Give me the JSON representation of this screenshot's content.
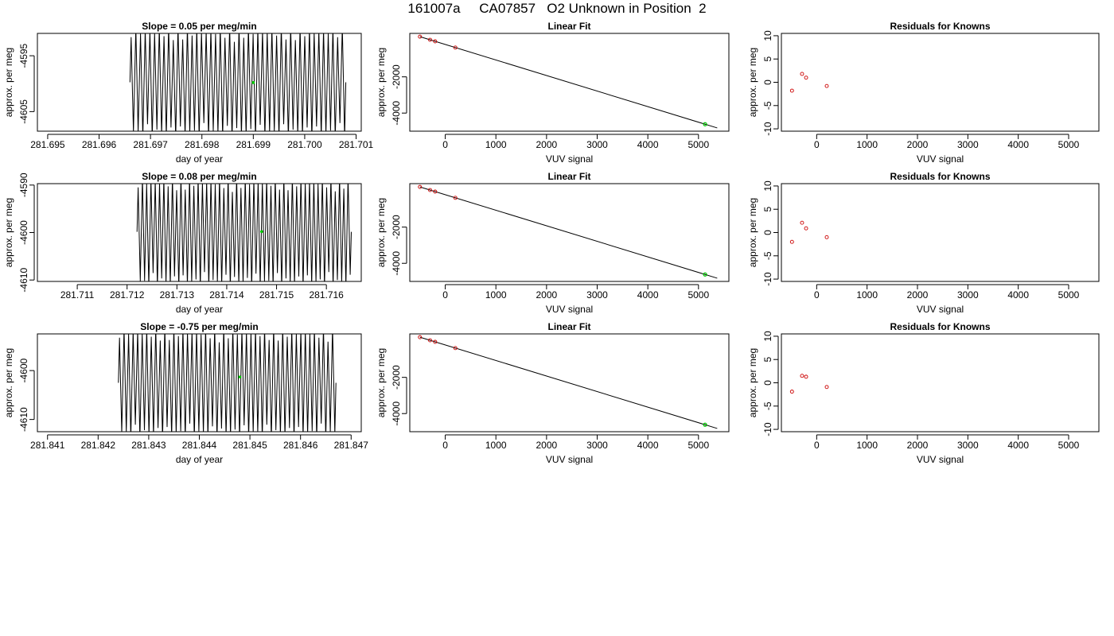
{
  "figure_title": "161007a     CA07857   O2 Unknown in Position  2",
  "chart_data": [
    {
      "type": "line",
      "title": "Slope =  0.05  per meg/min",
      "xlabel": "day of year",
      "ylabel": "approx. per meg",
      "xlim": [
        281.6948,
        281.7011
      ],
      "ylim": [
        -4608.5,
        -4591
      ],
      "xticks": [
        281.695,
        281.696,
        281.697,
        281.698,
        281.699,
        281.7,
        281.701
      ],
      "xtick_labels": [
        "281.695",
        "281.696",
        "281.697",
        "281.698",
        "281.699",
        "281.700",
        "281.701"
      ],
      "yticks": [
        -4595,
        -4605
      ],
      "ytick_labels": [
        "-4595",
        "-4605"
      ],
      "series": [
        {
          "style": "oscillating trace",
          "x_start": 281.6966,
          "x_end": 281.7008,
          "y_high": -4591,
          "y_low": -4608.5,
          "cycles": 46,
          "color": "#000000"
        }
      ],
      "highlight_point": {
        "x": 281.699,
        "y": -4599.8,
        "color": "#00cc00"
      }
    },
    {
      "type": "scatter",
      "title": "Linear Fit",
      "xlabel": "VUV signal",
      "ylabel": "approx. per meg",
      "xlim": [
        -700,
        5600
      ],
      "ylim": [
        -5000,
        400
      ],
      "xticks": [
        0,
        1000,
        2000,
        3000,
        4000,
        5000
      ],
      "xtick_labels": [
        "0",
        "1000",
        "2000",
        "3000",
        "4000",
        "5000"
      ],
      "yticks": [
        -2000,
        -4000
      ],
      "ytick_labels": [
        "-2000",
        "-4000"
      ],
      "fit_line": {
        "x": [
          -500,
          5370
        ],
        "y": [
          219,
          -4821
        ]
      },
      "known_points": {
        "x": [
          -500,
          -300,
          -200,
          200
        ],
        "y": [
          219,
          47,
          -39,
          -383
        ],
        "color": "#cc0000"
      },
      "unknown_point": {
        "x": 5130,
        "y": -4615,
        "color": "#00cc00"
      }
    },
    {
      "type": "scatter",
      "title": "Residuals for Knowns",
      "xlabel": "VUV signal",
      "ylabel": "approx. per meg",
      "xlim": [
        -700,
        5600
      ],
      "ylim": [
        -10.5,
        10.5
      ],
      "xticks": [
        0,
        1000,
        2000,
        3000,
        4000,
        5000
      ],
      "xtick_labels": [
        "0",
        "1000",
        "2000",
        "3000",
        "4000",
        "5000"
      ],
      "yticks": [
        -10,
        -5,
        0,
        5,
        10
      ],
      "ytick_labels": [
        "-10",
        "-5",
        "0",
        "5",
        "10"
      ],
      "points": {
        "x": [
          -490,
          -290,
          -210,
          200
        ],
        "y": [
          -1.8,
          1.8,
          1.0,
          -0.8
        ],
        "color": "#cc0000"
      }
    },
    {
      "type": "line",
      "title": "Slope =  0.08  per meg/min",
      "xlabel": "day of year",
      "ylabel": "approx. per meg",
      "xlim": [
        281.7102,
        281.7167
      ],
      "ylim": [
        -4610.3,
        -4589.7
      ],
      "xticks": [
        281.711,
        281.712,
        281.713,
        281.714,
        281.715,
        281.716
      ],
      "xtick_labels": [
        "281.711",
        "281.712",
        "281.713",
        "281.714",
        "281.715",
        "281.716"
      ],
      "yticks": [
        -4590,
        -4600,
        -4610
      ],
      "ytick_labels": [
        "-4590",
        "-4600",
        "-4610"
      ],
      "series": [
        {
          "style": "oscillating trace",
          "x_start": 281.7122,
          "x_end": 281.7165,
          "y_high": -4589.7,
          "y_low": -4610,
          "cycles": 50,
          "color": "#000000"
        }
      ],
      "highlight_point": {
        "x": 281.7147,
        "y": -4599.8,
        "color": "#00cc00"
      }
    },
    {
      "type": "scatter",
      "title": "Linear Fit",
      "xlabel": "VUV signal",
      "ylabel": "approx. per meg",
      "xlim": [
        -700,
        5600
      ],
      "ylim": [
        -5000,
        400
      ],
      "xticks": [
        0,
        1000,
        2000,
        3000,
        4000,
        5000
      ],
      "xtick_labels": [
        "0",
        "1000",
        "2000",
        "3000",
        "4000",
        "5000"
      ],
      "yticks": [
        -2000,
        -4000
      ],
      "ytick_labels": [
        "-2000",
        "-4000"
      ],
      "fit_line": {
        "x": [
          -500,
          5370
        ],
        "y": [
          219,
          -4821
        ]
      },
      "known_points": {
        "x": [
          -500,
          -300,
          -200,
          200
        ],
        "y": [
          219,
          47,
          -39,
          -383
        ],
        "color": "#cc0000"
      },
      "unknown_point": {
        "x": 5130,
        "y": -4615,
        "color": "#00cc00"
      }
    },
    {
      "type": "scatter",
      "title": "Residuals for Knowns",
      "xlabel": "VUV signal",
      "ylabel": "approx. per meg",
      "xlim": [
        -700,
        5600
      ],
      "ylim": [
        -10.5,
        10.5
      ],
      "xticks": [
        0,
        1000,
        2000,
        3000,
        4000,
        5000
      ],
      "xtick_labels": [
        "0",
        "1000",
        "2000",
        "3000",
        "4000",
        "5000"
      ],
      "yticks": [
        -10,
        -5,
        0,
        5,
        10
      ],
      "ytick_labels": [
        "-10",
        "-5",
        "0",
        "5",
        "10"
      ],
      "points": {
        "x": [
          -490,
          -290,
          -210,
          200
        ],
        "y": [
          -2.0,
          2.1,
          0.9,
          -1.0
        ],
        "color": "#cc0000"
      }
    },
    {
      "type": "line",
      "title": "Slope =  -0.75  per meg/min",
      "xlabel": "day of year",
      "ylabel": "approx. per meg",
      "xlim": [
        281.8408,
        281.8472
      ],
      "ylim": [
        -4612.5,
        -4592.5
      ],
      "xticks": [
        281.841,
        281.842,
        281.843,
        281.844,
        281.845,
        281.846,
        281.847
      ],
      "xtick_labels": [
        "281.841",
        "281.842",
        "281.843",
        "281.844",
        "281.845",
        "281.846",
        "281.847"
      ],
      "yticks": [
        -4600,
        -4610
      ],
      "ytick_labels": [
        "-4600",
        "-4610"
      ],
      "series": [
        {
          "style": "oscillating trace",
          "x_start": 281.8424,
          "x_end": 281.8467,
          "y_high": -4592.5,
          "y_low": -4612.5,
          "cycles": 48,
          "color": "#000000"
        }
      ],
      "highlight_point": {
        "x": 281.8448,
        "y": -4601.3,
        "color": "#00cc00"
      }
    },
    {
      "type": "scatter",
      "title": "Linear Fit",
      "xlabel": "VUV signal",
      "ylabel": "approx. per meg",
      "xlim": [
        -700,
        5600
      ],
      "ylim": [
        -5000,
        400
      ],
      "xticks": [
        0,
        1000,
        2000,
        3000,
        4000,
        5000
      ],
      "xtick_labels": [
        "0",
        "1000",
        "2000",
        "3000",
        "4000",
        "5000"
      ],
      "yticks": [
        -2000,
        -4000
      ],
      "ytick_labels": [
        "-2000",
        "-4000"
      ],
      "fit_line": {
        "x": [
          -500,
          5370
        ],
        "y": [
          219,
          -4821
        ]
      },
      "known_points": {
        "x": [
          -500,
          -300,
          -200,
          200
        ],
        "y": [
          219,
          47,
          -39,
          -383
        ],
        "color": "#cc0000"
      },
      "unknown_point": {
        "x": 5130,
        "y": -4615,
        "color": "#00cc00"
      }
    },
    {
      "type": "scatter",
      "title": "Residuals for Knowns",
      "xlabel": "VUV signal",
      "ylabel": "approx. per meg",
      "xlim": [
        -700,
        5600
      ],
      "ylim": [
        -10.5,
        10.5
      ],
      "xticks": [
        0,
        1000,
        2000,
        3000,
        4000,
        5000
      ],
      "xtick_labels": [
        "0",
        "1000",
        "2000",
        "3000",
        "4000",
        "5000"
      ],
      "yticks": [
        -10,
        -5,
        0,
        5,
        10
      ],
      "ytick_labels": [
        "-10",
        "-5",
        "0",
        "5",
        "10"
      ],
      "points": {
        "x": [
          -490,
          -290,
          -210,
          200
        ],
        "y": [
          -1.9,
          1.5,
          1.3,
          -0.9
        ],
        "color": "#cc0000"
      }
    }
  ]
}
